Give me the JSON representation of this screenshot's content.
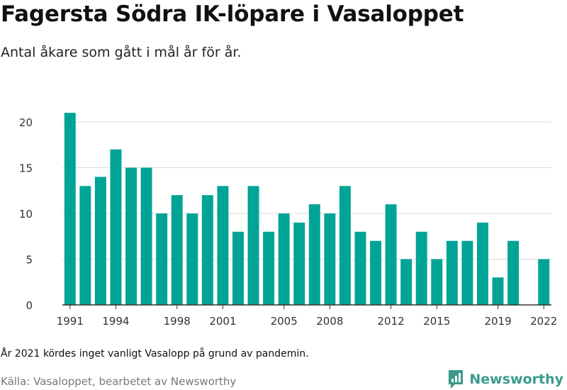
{
  "header": {
    "title": "Fagersta Södra IK-löpare i Vasaloppet",
    "subtitle": "Antal åkare som gått i mål år för år."
  },
  "footer": {
    "note": "År 2021 kördes inget vanligt Vasalopp på grund av pandemin.",
    "source": "Källa: Vasaloppet, bearbetet av Newsworthy",
    "brand": "Newsworthy"
  },
  "colors": {
    "bar": "#00a497",
    "grid": "#dddddd",
    "axis": "#333333",
    "brand": "#3a9a8c"
  },
  "chart_data": {
    "type": "bar",
    "categories": [
      1991,
      1992,
      1993,
      1994,
      1995,
      1996,
      1997,
      1998,
      1999,
      2000,
      2001,
      2002,
      2003,
      2004,
      2005,
      2006,
      2007,
      2008,
      2009,
      2010,
      2011,
      2012,
      2013,
      2014,
      2015,
      2016,
      2017,
      2018,
      2019,
      2020,
      2021,
      2022
    ],
    "values": [
      21,
      13,
      14,
      17,
      15,
      15,
      10,
      12,
      10,
      12,
      13,
      8,
      13,
      8,
      10,
      9,
      11,
      10,
      13,
      8,
      7,
      11,
      5,
      8,
      5,
      7,
      7,
      9,
      3,
      7,
      null,
      5
    ],
    "x_tick_labels": [
      "1991",
      "1994",
      "1998",
      "2001",
      "2005",
      "2008",
      "2012",
      "2015",
      "2019",
      "2022"
    ],
    "y_ticks": [
      0,
      5,
      10,
      15,
      20
    ],
    "ylim": [
      0,
      21
    ],
    "grid": true,
    "legend": "none"
  }
}
